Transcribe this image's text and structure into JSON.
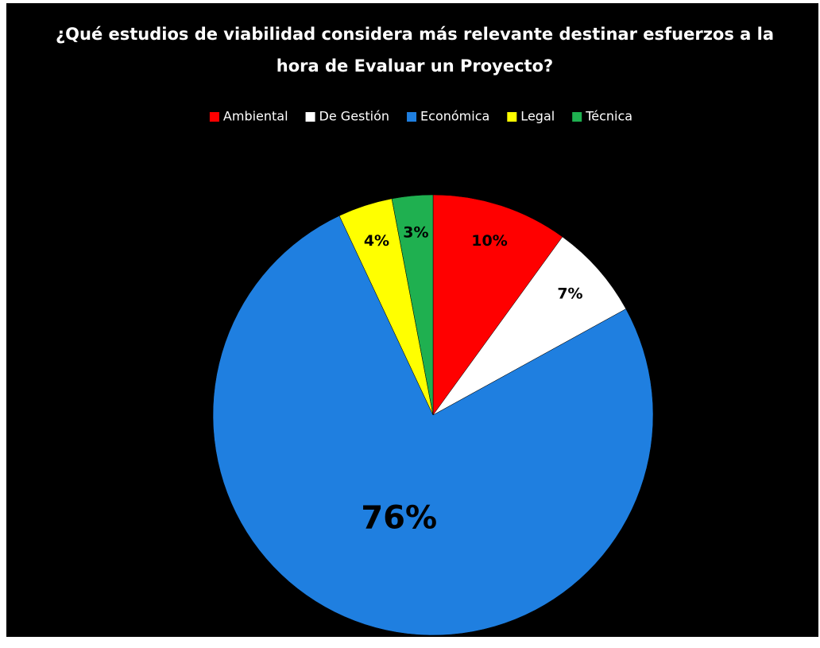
{
  "chart_data": {
    "type": "pie",
    "title": [
      "¿Qué estudios de viabilidad considera más relevante destinar esfuerzos a la",
      "hora de Evaluar un Proyecto?"
    ],
    "categories": [
      "Ambiental",
      "De Gestión",
      "Económica",
      "Legal",
      "Técnica"
    ],
    "values": [
      10,
      7,
      76,
      4,
      3
    ],
    "value_labels": [
      "10%",
      "7%",
      "76%",
      "4%",
      "3%"
    ],
    "colors": [
      "#ff0000",
      "#ffffff",
      "#1f7fe0",
      "#ffff00",
      "#1fb050"
    ],
    "legend": "top"
  }
}
